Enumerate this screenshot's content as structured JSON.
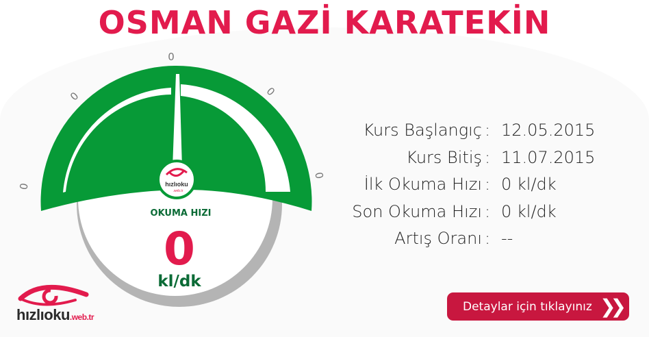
{
  "title": "OSMAN GAZİ KARATEKİN",
  "gauge": {
    "label": "OKUMA HIZI",
    "value": "0",
    "unit": "kl/dk",
    "scale_labels": [
      "0",
      "0",
      "0",
      "0",
      "0"
    ],
    "needle_fraction": 0,
    "logo_text": "hızlıoku",
    "logo_sub": ".web.tr",
    "colors": {
      "green": "#079a37",
      "grey": "#b4b4b4",
      "value": "#e21b4d",
      "label": "#0b6b36"
    }
  },
  "info": [
    {
      "label": "Kurs Başlangıç",
      "value": "12.05.2015"
    },
    {
      "label": "Kurs Bitiş",
      "value": "11.07.2015"
    },
    {
      "label": "İlk Okuma Hızı",
      "value": "0 kl/dk"
    },
    {
      "label": "Son Okuma Hızı",
      "value": "0 kl/dk"
    },
    {
      "label": "Artış Oranı",
      "value": "--"
    }
  ],
  "separator": ":",
  "detail_button": {
    "label": "Detaylar için tıklayınız",
    "icon": "double-chevron-right-icon"
  },
  "brand": {
    "name": "hızlıoku",
    "suffix": ".web.tr",
    "mark": "®"
  },
  "colors": {
    "accent": "#e21b4d",
    "button": "#c8173f"
  }
}
